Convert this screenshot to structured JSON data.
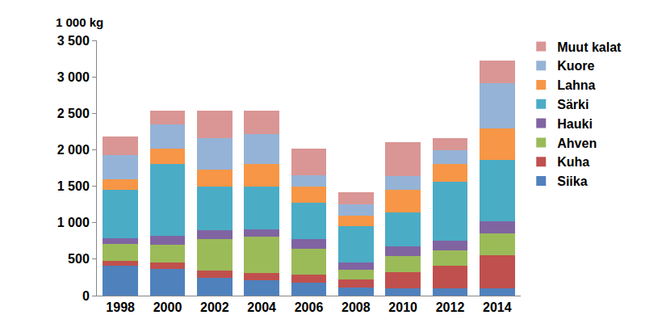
{
  "chart_data": {
    "type": "bar",
    "stacked": true,
    "y_label": "1 000 kg",
    "categories": [
      "1998",
      "2000",
      "2002",
      "2004",
      "2006",
      "2008",
      "2010",
      "2012",
      "2014"
    ],
    "series": [
      {
        "name": "Siika",
        "color": "#4f81bd",
        "values": [
          410,
          370,
          240,
          210,
          180,
          110,
          100,
          100,
          100
        ]
      },
      {
        "name": "Kuha",
        "color": "#c0504d",
        "values": [
          70,
          80,
          100,
          100,
          110,
          110,
          220,
          310,
          450
        ]
      },
      {
        "name": "Ahven",
        "color": "#9bbb59",
        "values": [
          230,
          250,
          440,
          500,
          350,
          130,
          220,
          210,
          300
        ]
      },
      {
        "name": "Hauki",
        "color": "#8064a2",
        "values": [
          80,
          120,
          120,
          100,
          130,
          100,
          140,
          130,
          170
        ]
      },
      {
        "name": "Särki",
        "color": "#4bacc6",
        "values": [
          660,
          980,
          600,
          580,
          500,
          500,
          460,
          810,
          840
        ]
      },
      {
        "name": "Lahna",
        "color": "#f79646",
        "values": [
          140,
          220,
          230,
          320,
          220,
          150,
          310,
          240,
          430
        ]
      },
      {
        "name": "Kuore",
        "color": "#95b3d7",
        "values": [
          340,
          330,
          430,
          410,
          160,
          150,
          190,
          190,
          620
        ]
      },
      {
        "name": "Muut kalat",
        "color": "#d99694",
        "values": [
          250,
          190,
          380,
          320,
          370,
          170,
          460,
          170,
          310
        ]
      }
    ],
    "ylim": [
      0,
      3500
    ],
    "yticks": [
      0,
      500,
      {
        "value": 1000,
        "label": "1 000"
      },
      {
        "value": 1500,
        "label": "1 500"
      },
      {
        "value": 2000,
        "label": "2 000"
      },
      {
        "value": 2500,
        "label": "2 500"
      },
      {
        "value": 3000,
        "label": "3 000"
      },
      {
        "value": 3500,
        "label": "3 500"
      }
    ],
    "grid": false,
    "legend": "right"
  }
}
